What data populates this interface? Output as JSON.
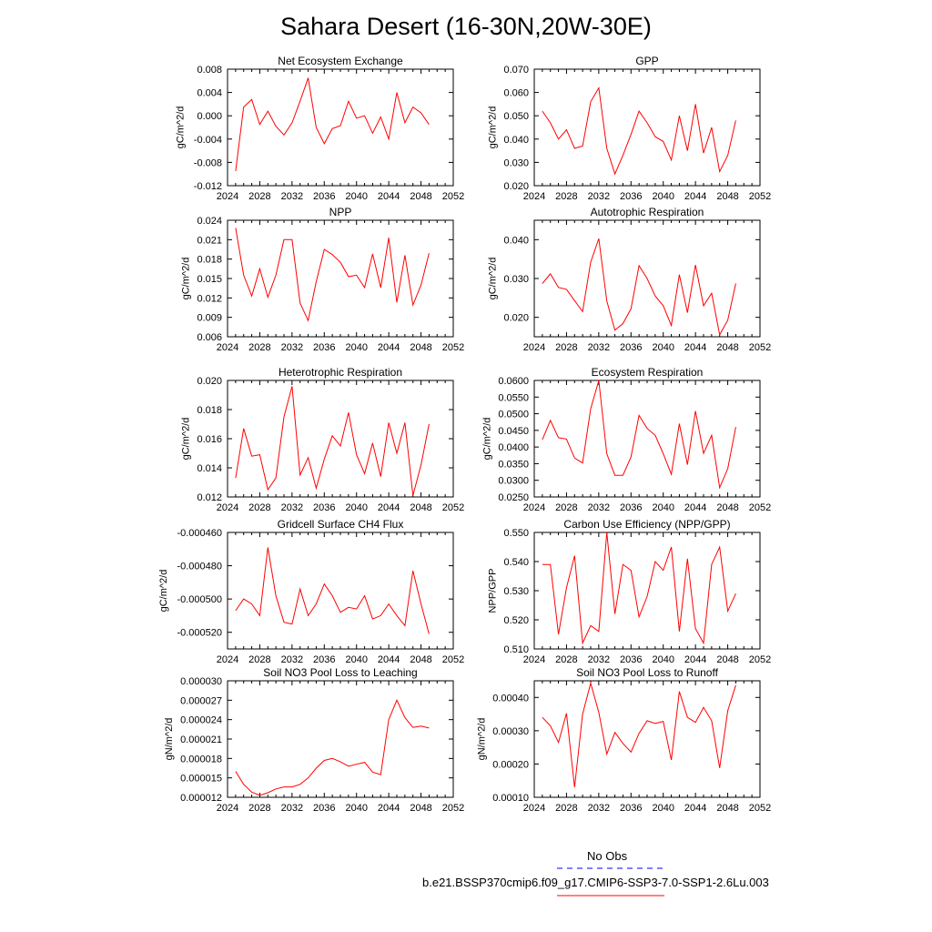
{
  "title": "Sahara Desert (16-30N,20W-30E)",
  "legend": {
    "entries": [
      {
        "label": "No Obs",
        "color": "#0000ff",
        "style": "dashed"
      },
      {
        "label": "b.e21.BSSP370cmip6.f09_g17.CMIP6-SSP3-7.0-SSP1-2.6Lu.003",
        "color": "#ff0000",
        "style": "solid"
      }
    ]
  },
  "chart_data": [
    {
      "type": "line",
      "title": "Net Ecosystem Exchange",
      "xlabel": "",
      "ylabel": "gC/m^2/d",
      "xlim": [
        2024,
        2052
      ],
      "ylim": [
        -0.012,
        0.008
      ],
      "xticks": [
        "2024",
        "2028",
        "2032",
        "2036",
        "2040",
        "2044",
        "2048",
        "2052"
      ],
      "yticks": [
        "-0.012",
        "-0.008",
        "-0.004",
        "0.000",
        "0.004",
        "0.008"
      ],
      "series": [
        {
          "color": "#ff0000",
          "x": [
            2025,
            2026,
            2027,
            2028,
            2029,
            2030,
            2031,
            2032,
            2033,
            2034,
            2035,
            2036,
            2037,
            2038,
            2039,
            2040,
            2041,
            2042,
            2043,
            2044,
            2045,
            2046,
            2047,
            2048,
            2049
          ],
          "values": [
            -0.0095,
            0.0015,
            0.0028,
            -0.0015,
            0.0008,
            -0.0018,
            -0.0033,
            -0.0012,
            0.0025,
            0.0065,
            -0.002,
            -0.0048,
            -0.0022,
            -0.0017,
            0.0025,
            -0.0004,
            0.0,
            -0.003,
            -0.0002,
            -0.004,
            0.004,
            -0.0012,
            0.0015,
            0.0005,
            -0.0015
          ]
        }
      ]
    },
    {
      "type": "line",
      "title": "GPP",
      "xlabel": "",
      "ylabel": "gC/m^2/d",
      "xlim": [
        2024,
        2052
      ],
      "ylim": [
        0.02,
        0.07
      ],
      "xticks": [
        "2024",
        "2028",
        "2032",
        "2036",
        "2040",
        "2044",
        "2048",
        "2052"
      ],
      "yticks": [
        "0.020",
        "0.030",
        "0.040",
        "0.050",
        "0.060",
        "0.070"
      ],
      "series": [
        {
          "color": "#ff0000",
          "x": [
            2025,
            2026,
            2027,
            2028,
            2029,
            2030,
            2031,
            2032,
            2033,
            2034,
            2035,
            2036,
            2037,
            2038,
            2039,
            2040,
            2041,
            2042,
            2043,
            2044,
            2045,
            2046,
            2047,
            2048,
            2049
          ],
          "values": [
            0.052,
            0.047,
            0.04,
            0.044,
            0.036,
            0.037,
            0.056,
            0.062,
            0.036,
            0.025,
            0.033,
            0.042,
            0.052,
            0.047,
            0.041,
            0.039,
            0.031,
            0.05,
            0.035,
            0.055,
            0.034,
            0.045,
            0.026,
            0.033,
            0.048
          ]
        }
      ]
    },
    {
      "type": "line",
      "title": "NPP",
      "xlabel": "",
      "ylabel": "gC/m^2/d",
      "xlim": [
        2024,
        2052
      ],
      "ylim": [
        0.006,
        0.024
      ],
      "xticks": [
        "2024",
        "2028",
        "2032",
        "2036",
        "2040",
        "2044",
        "2048",
        "2052"
      ],
      "yticks": [
        "0.006",
        "0.009",
        "0.012",
        "0.015",
        "0.018",
        "0.021",
        "0.024"
      ],
      "series": [
        {
          "color": "#ff0000",
          "x": [
            2025,
            2026,
            2027,
            2028,
            2029,
            2030,
            2031,
            2032,
            2033,
            2034,
            2035,
            2036,
            2037,
            2038,
            2039,
            2040,
            2041,
            2042,
            2043,
            2044,
            2045,
            2046,
            2047,
            2048,
            2049
          ],
          "values": [
            0.0228,
            0.0155,
            0.0123,
            0.0165,
            0.0121,
            0.0155,
            0.021,
            0.021,
            0.0112,
            0.0085,
            0.0145,
            0.0195,
            0.0187,
            0.0175,
            0.0153,
            0.0155,
            0.0136,
            0.0188,
            0.0136,
            0.0213,
            0.0113,
            0.0186,
            0.0109,
            0.014,
            0.0189
          ]
        }
      ]
    },
    {
      "type": "line",
      "title": "Autotrophic Respiration",
      "xlabel": "",
      "ylabel": "gC/m^2/d",
      "xlim": [
        2024,
        2052
      ],
      "ylim": [
        0.015,
        0.045
      ],
      "xticks": [
        "2024",
        "2028",
        "2032",
        "2036",
        "2040",
        "2044",
        "2048",
        "2052"
      ],
      "yticks": [
        "0.020",
        "0.030",
        "0.040"
      ],
      "series": [
        {
          "color": "#ff0000",
          "x": [
            2025,
            2026,
            2027,
            2028,
            2029,
            2030,
            2031,
            2032,
            2033,
            2034,
            2035,
            2036,
            2037,
            2038,
            2039,
            2040,
            2041,
            2042,
            2043,
            2044,
            2045,
            2046,
            2047,
            2048,
            2049
          ],
          "values": [
            0.0287,
            0.0312,
            0.0277,
            0.0272,
            0.0243,
            0.0215,
            0.0342,
            0.0403,
            0.0242,
            0.0167,
            0.0184,
            0.0222,
            0.0333,
            0.03,
            0.0255,
            0.023,
            0.0179,
            0.031,
            0.0212,
            0.0335,
            0.023,
            0.0262,
            0.0155,
            0.0193,
            0.0287
          ]
        }
      ]
    },
    {
      "type": "line",
      "title": "Heterotrophic Respiration",
      "xlabel": "",
      "ylabel": "gC/m^2/d",
      "xlim": [
        2024,
        2052
      ],
      "ylim": [
        0.012,
        0.02
      ],
      "xticks": [
        "2024",
        "2028",
        "2032",
        "2036",
        "2040",
        "2044",
        "2048",
        "2052"
      ],
      "yticks": [
        "0.012",
        "0.014",
        "0.016",
        "0.018",
        "0.020"
      ],
      "series": [
        {
          "color": "#ff0000",
          "x": [
            2025,
            2026,
            2027,
            2028,
            2029,
            2030,
            2031,
            2032,
            2033,
            2034,
            2035,
            2036,
            2037,
            2038,
            2039,
            2040,
            2041,
            2042,
            2043,
            2044,
            2045,
            2046,
            2047,
            2048,
            2049
          ],
          "values": [
            0.0133,
            0.0167,
            0.0148,
            0.0149,
            0.0125,
            0.0133,
            0.0175,
            0.0196,
            0.0135,
            0.0147,
            0.0126,
            0.0146,
            0.0162,
            0.0155,
            0.0178,
            0.0149,
            0.0136,
            0.0157,
            0.0134,
            0.0171,
            0.015,
            0.0171,
            0.0121,
            0.0142,
            0.017
          ]
        }
      ]
    },
    {
      "type": "line",
      "title": "Ecosystem Respiration",
      "xlabel": "",
      "ylabel": "gC/m^2/d",
      "xlim": [
        2024,
        2052
      ],
      "ylim": [
        0.025,
        0.06
      ],
      "xticks": [
        "2024",
        "2028",
        "2032",
        "2036",
        "2040",
        "2044",
        "2048",
        "2052"
      ],
      "yticks": [
        "0.0250",
        "0.0300",
        "0.0350",
        "0.0400",
        "0.0450",
        "0.0500",
        "0.0550",
        "0.0600"
      ],
      "series": [
        {
          "color": "#ff0000",
          "x": [
            2025,
            2026,
            2027,
            2028,
            2029,
            2030,
            2031,
            2032,
            2033,
            2034,
            2035,
            2036,
            2037,
            2038,
            2039,
            2040,
            2041,
            2042,
            2043,
            2044,
            2045,
            2046,
            2047,
            2048,
            2049
          ],
          "values": [
            0.0422,
            0.048,
            0.0428,
            0.0424,
            0.0367,
            0.0352,
            0.0515,
            0.06,
            0.038,
            0.0315,
            0.0315,
            0.037,
            0.0495,
            0.0456,
            0.0435,
            0.038,
            0.0318,
            0.047,
            0.0347,
            0.0508,
            0.0381,
            0.0435,
            0.0278,
            0.0335,
            0.046
          ]
        }
      ]
    },
    {
      "type": "line",
      "title": "Gridcell Surface CH4 Flux",
      "xlabel": "",
      "ylabel": "gC/m^2/d",
      "xlim": [
        2024,
        2052
      ],
      "ylim": [
        -0.00053,
        -0.00046
      ],
      "xticks": [
        "2024",
        "2028",
        "2032",
        "2036",
        "2040",
        "2044",
        "2048",
        "2052"
      ],
      "yticks": [
        "-0.000520",
        "-0.000500",
        "-0.000480",
        "-0.000460"
      ],
      "series": [
        {
          "color": "#ff0000",
          "x": [
            2025,
            2026,
            2027,
            2028,
            2029,
            2030,
            2031,
            2032,
            2033,
            2034,
            2035,
            2036,
            2037,
            2038,
            2039,
            2040,
            2041,
            2042,
            2043,
            2044,
            2045,
            2046,
            2047,
            2048,
            2049
          ],
          "values": [
            -0.000507,
            -0.0005,
            -0.000503,
            -0.00051,
            -0.000469,
            -0.000498,
            -0.000514,
            -0.000515,
            -0.000494,
            -0.00051,
            -0.000503,
            -0.000491,
            -0.000498,
            -0.000508,
            -0.000505,
            -0.000506,
            -0.000498,
            -0.000512,
            -0.00051,
            -0.000503,
            -0.00051,
            -0.000516,
            -0.000483,
            -0.000503,
            -0.000521
          ]
        }
      ]
    },
    {
      "type": "line",
      "title": "Carbon Use Efficiency (NPP/GPP)",
      "xlabel": "",
      "ylabel": "NPP/GPP",
      "xlim": [
        2024,
        2052
      ],
      "ylim": [
        0.51,
        0.55
      ],
      "xticks": [
        "2024",
        "2028",
        "2032",
        "2036",
        "2040",
        "2044",
        "2048",
        "2052"
      ],
      "yticks": [
        "0.510",
        "0.520",
        "0.530",
        "0.540",
        "0.550"
      ],
      "series": [
        {
          "color": "#ff0000",
          "x": [
            2025,
            2026,
            2027,
            2028,
            2029,
            2030,
            2031,
            2032,
            2033,
            2034,
            2035,
            2036,
            2037,
            2038,
            2039,
            2040,
            2041,
            2042,
            2043,
            2044,
            2045,
            2046,
            2047,
            2048,
            2049
          ],
          "values": [
            0.539,
            0.539,
            0.515,
            0.531,
            0.542,
            0.512,
            0.518,
            0.516,
            0.55,
            0.522,
            0.539,
            0.537,
            0.521,
            0.528,
            0.54,
            0.537,
            0.545,
            0.516,
            0.541,
            0.517,
            0.512,
            0.539,
            0.545,
            0.523,
            0.529
          ]
        }
      ]
    },
    {
      "type": "line",
      "title": "Soil NO3 Pool Loss to Leaching",
      "xlabel": "",
      "ylabel": "gN/m^2/d",
      "xlim": [
        2024,
        2052
      ],
      "ylim": [
        1.2e-05,
        3e-05
      ],
      "xticks": [
        "2024",
        "2028",
        "2032",
        "2036",
        "2040",
        "2044",
        "2048",
        "2052"
      ],
      "yticks": [
        "0.000012",
        "0.000015",
        "0.000018",
        "0.000021",
        "0.000024",
        "0.000027",
        "0.000030"
      ],
      "series": [
        {
          "color": "#ff0000",
          "x": [
            2025,
            2026,
            2027,
            2028,
            2029,
            2030,
            2031,
            2032,
            2033,
            2034,
            2035,
            2036,
            2037,
            2038,
            2039,
            2040,
            2041,
            2042,
            2043,
            2044,
            2045,
            2046,
            2047,
            2048,
            2049
          ],
          "values": [
            1.6e-05,
            1.4e-05,
            1.28e-05,
            1.23e-05,
            1.27e-05,
            1.33e-05,
            1.36e-05,
            1.36e-05,
            1.4e-05,
            1.5e-05,
            1.65e-05,
            1.77e-05,
            1.8e-05,
            1.75e-05,
            1.68e-05,
            1.71e-05,
            1.74e-05,
            1.59e-05,
            1.55e-05,
            2.4e-05,
            2.7e-05,
            2.43e-05,
            2.28e-05,
            2.3e-05,
            2.27e-05
          ]
        }
      ]
    },
    {
      "type": "line",
      "title": "Soil NO3 Pool Loss to Runoff",
      "xlabel": "",
      "ylabel": "gN/m^2/d",
      "xlim": [
        2024,
        2052
      ],
      "ylim": [
        0.0001,
        0.00045
      ],
      "xticks": [
        "2024",
        "2028",
        "2032",
        "2036",
        "2040",
        "2044",
        "2048",
        "2052"
      ],
      "yticks": [
        "0.00010",
        "0.00020",
        "0.00030",
        "0.00040"
      ],
      "series": [
        {
          "color": "#ff0000",
          "x": [
            2025,
            2026,
            2027,
            2028,
            2029,
            2030,
            2031,
            2032,
            2033,
            2034,
            2035,
            2036,
            2037,
            2038,
            2039,
            2040,
            2041,
            2042,
            2043,
            2044,
            2045,
            2046,
            2047,
            2048,
            2049
          ],
          "values": [
            0.00034,
            0.000315,
            0.000265,
            0.000352,
            0.00013,
            0.00035,
            0.000443,
            0.000355,
            0.00023,
            0.000295,
            0.000262,
            0.000236,
            0.000292,
            0.00033,
            0.000322,
            0.000328,
            0.000212,
            0.000418,
            0.00034,
            0.000325,
            0.00037,
            0.00033,
            0.000188,
            0.00036,
            0.000437
          ]
        }
      ]
    }
  ]
}
